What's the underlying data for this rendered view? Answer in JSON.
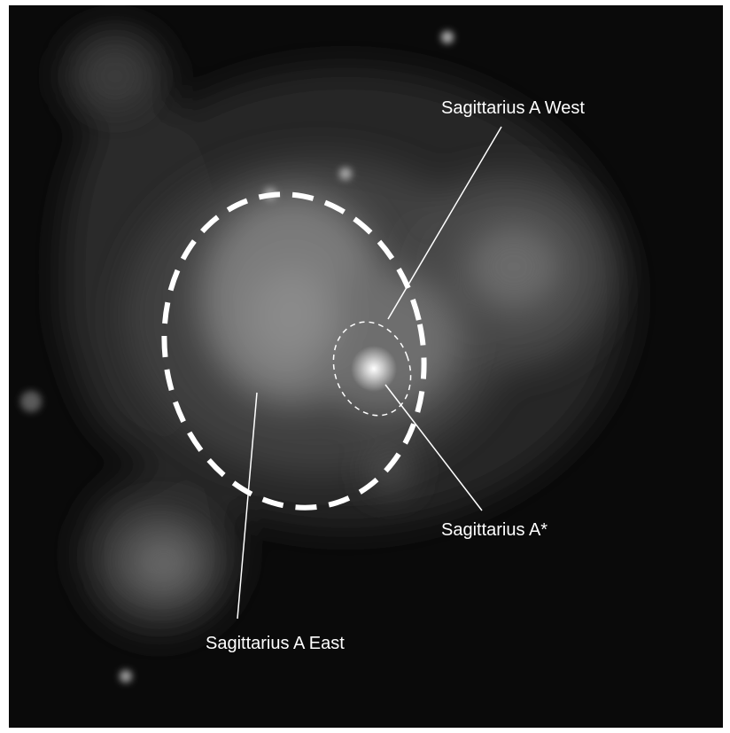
{
  "image": {
    "subject": "X-ray image of galactic centre region",
    "background_color": "#0a0a0a",
    "annotation_color": "#ffffff"
  },
  "annotations": {
    "west": "Sagittarius A West",
    "star": "Sagittarius A*",
    "east": "Sagittarius A East"
  }
}
